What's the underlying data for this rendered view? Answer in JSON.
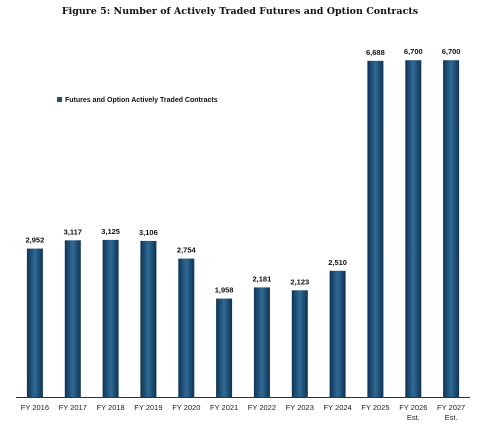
{
  "figure": {
    "title": "Figure 5:  Number of Actively Traded Futures and Option Contracts"
  },
  "chart_data": {
    "type": "bar",
    "title": "",
    "xlabel": "",
    "ylabel": "",
    "categories": [
      "FY 2016",
      "FY 2017",
      "FY 2018",
      "FY 2019",
      "FY 2020",
      "FY 2021",
      "FY 2022",
      "FY 2023",
      "FY 2024",
      "FY 2025",
      "FY 2026",
      "FY 2027"
    ],
    "category_sublabels": [
      "",
      "",
      "",
      "",
      "",
      "",
      "",
      "",
      "",
      "",
      "Est.",
      "Est."
    ],
    "series": [
      {
        "name": "Futures and Option Actively Traded Contracts",
        "values": [
          2952,
          3117,
          3125,
          3106,
          2754,
          1958,
          2181,
          2123,
          2510,
          6688,
          6700,
          6700
        ],
        "value_labels": [
          "2,952",
          "3,117",
          "3,125",
          "3,106",
          "2,754",
          "1,958",
          "2,181",
          "2,123",
          "2,510",
          "6,688",
          "6,700",
          "6,700"
        ]
      }
    ],
    "ylim": [
      0,
      7500
    ],
    "grid": false,
    "legend_position": "top-left",
    "colors": {
      "bar": "#1d4f78",
      "bar_light": "#2f6a96",
      "bar_dark": "#0f3352",
      "axis": "#333333"
    }
  }
}
